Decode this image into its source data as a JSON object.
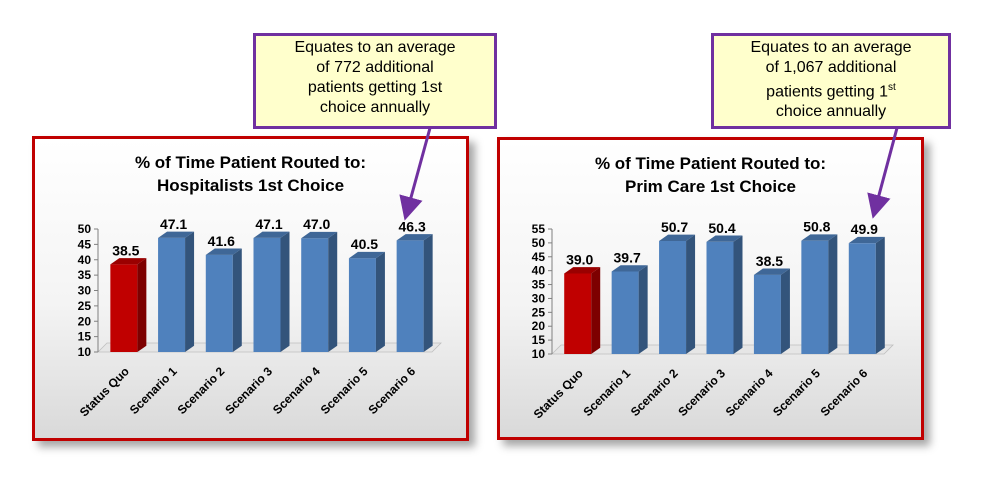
{
  "colors": {
    "bar": "#4f81bd",
    "highlight_bar": "#c00000",
    "border": "#c00000",
    "callout_border": "#7030a0",
    "callout_fill": "#ffffcc"
  },
  "callouts": [
    {
      "line1": "Equates to an average",
      "line2": "of 772 additional",
      "line3": "patients getting 1st",
      "line4": "choice annually"
    },
    {
      "line1": "Equates to an average",
      "line2": "of 1,067 additional",
      "line3_main": "patients getting 1",
      "line3_sup": "st",
      "line4": "choice annually"
    }
  ],
  "chart_data": [
    {
      "type": "bar",
      "title": "% of Time Patient Routed to:",
      "subtitle": "Hospitalists 1st Choice",
      "categories": [
        "Status Quo",
        "Scenario 1",
        "Scenario 2",
        "Scenario 3",
        "Scenario 4",
        "Scenario 5",
        "Scenario 6"
      ],
      "values": [
        38.5,
        47.1,
        41.6,
        47.1,
        47.0,
        40.5,
        46.3
      ],
      "value_labels": [
        "38.5",
        "47.1",
        "41.6",
        "47.1",
        "47.0",
        "40.5",
        "46.3"
      ],
      "highlight_index": 0,
      "ylim": [
        10,
        50
      ],
      "yticks": [
        10,
        15,
        20,
        25,
        30,
        35,
        40,
        45,
        50
      ],
      "xlabel": "",
      "ylabel": ""
    },
    {
      "type": "bar",
      "title": "% of Time Patient Routed to:",
      "subtitle": "Prim Care  1st Choice",
      "categories": [
        "Status Quo",
        "Scenario 1",
        "Scenario 2",
        "Scenario 3",
        "Scenario 4",
        "Scenario 5",
        "Scenario 6"
      ],
      "values": [
        39.0,
        39.7,
        50.7,
        50.4,
        38.5,
        50.8,
        49.9
      ],
      "value_labels": [
        "39.0",
        "39.7",
        "50.7",
        "50.4",
        "38.5",
        "50.8",
        "49.9"
      ],
      "highlight_index": 0,
      "ylim": [
        10,
        55
      ],
      "yticks": [
        10,
        15,
        20,
        25,
        30,
        35,
        40,
        45,
        50,
        55
      ],
      "xlabel": "",
      "ylabel": ""
    }
  ]
}
